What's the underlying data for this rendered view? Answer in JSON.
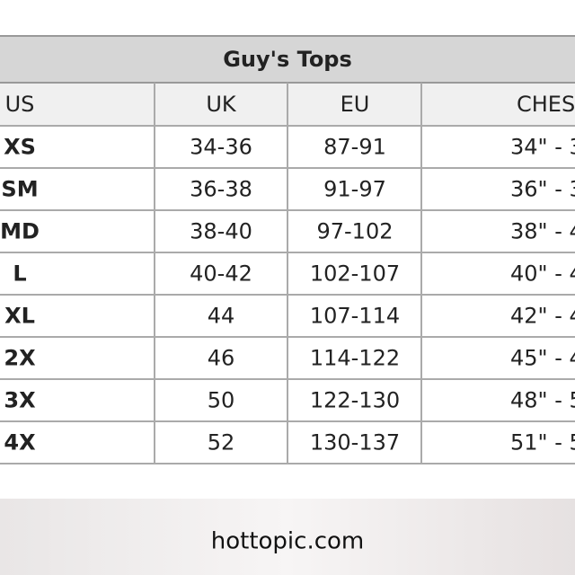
{
  "header": {
    "title": "Guy's Tops"
  },
  "table": {
    "columns": [
      "US",
      "UK",
      "EU",
      "CHES"
    ],
    "rows": [
      [
        "XS",
        "34-36",
        "87-91",
        "34\" - 3"
      ],
      [
        "SM",
        "36-38",
        "91-97",
        "36\" - 3"
      ],
      [
        "MD",
        "38-40",
        "97-102",
        "38\" - 4"
      ],
      [
        "L",
        "40-42",
        "102-107",
        "40\" - 4"
      ],
      [
        "XL",
        "44",
        "107-114",
        "42\" - 4"
      ],
      [
        "2X",
        "46",
        "114-122",
        "45\" - 4"
      ],
      [
        "3X",
        "50",
        "122-130",
        "48\" - 5"
      ],
      [
        "4X",
        "52",
        "130-137",
        "51\" - 5"
      ]
    ]
  },
  "footer": {
    "source": "hottopic.com"
  }
}
